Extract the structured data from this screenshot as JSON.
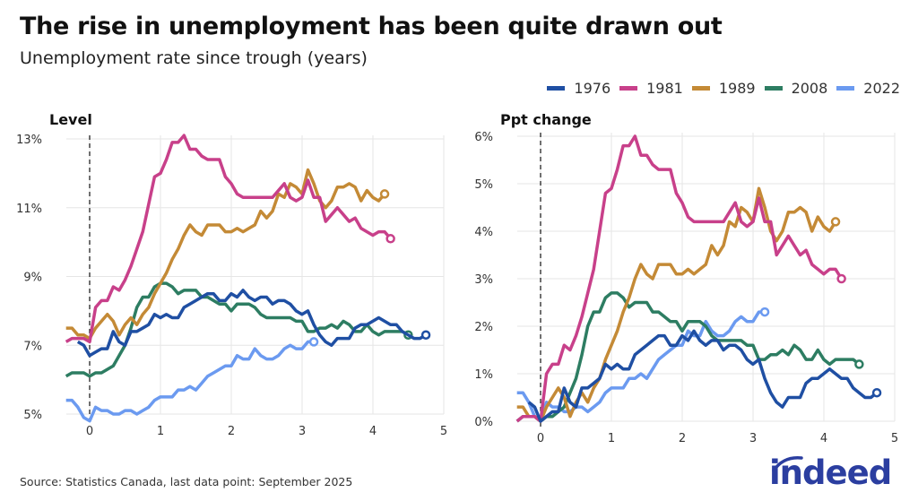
{
  "header": {
    "title": "The rise in unemployment has been quite drawn out",
    "subtitle": "Unemployment rate since trough (years)"
  },
  "footer": {
    "source": "Source: Statistics Canada, last data point: September 2025",
    "logo_text": "indeed"
  },
  "colors": {
    "1976": "#1f4fa3",
    "1981": "#c8408a",
    "1989": "#c48a36",
    "2008": "#2d7d62",
    "2022": "#6b9af0"
  },
  "legend": [
    "1976",
    "1981",
    "1989",
    "2008",
    "2022"
  ],
  "chart_data": [
    {
      "type": "line",
      "panel_title": "Level",
      "xlim": [
        -0.33,
        5
      ],
      "ylim": [
        5,
        13
      ],
      "x_ticks": [
        "0",
        "1",
        "2",
        "3",
        "4",
        "5"
      ],
      "y_ticks": [
        "5%",
        "7%",
        "9%",
        "11%",
        "13%"
      ],
      "grid": true,
      "reference_line_x": 0,
      "x_step": 0.0833,
      "series": [
        {
          "name": "2022",
          "x_start": -0.333,
          "values": [
            5.4,
            5.4,
            5.2,
            4.9,
            4.8,
            5.2,
            5.1,
            5.1,
            5.0,
            5.0,
            5.1,
            5.1,
            5.0,
            5.1,
            5.2,
            5.4,
            5.5,
            5.5,
            5.5,
            5.7,
            5.7,
            5.8,
            5.7,
            5.9,
            6.1,
            6.2,
            6.3,
            6.4,
            6.4,
            6.7,
            6.6,
            6.6,
            6.9,
            6.7,
            6.6,
            6.6,
            6.7,
            6.9,
            7.0,
            6.9,
            6.9,
            7.1,
            7.1
          ]
        },
        {
          "name": "2008",
          "x_start": -0.333,
          "values": [
            6.1,
            6.2,
            6.2,
            6.2,
            6.1,
            6.2,
            6.2,
            6.3,
            6.4,
            6.7,
            7.0,
            7.5,
            8.1,
            8.4,
            8.4,
            8.7,
            8.8,
            8.8,
            8.7,
            8.5,
            8.6,
            8.6,
            8.6,
            8.4,
            8.4,
            8.3,
            8.2,
            8.2,
            8.0,
            8.2,
            8.2,
            8.2,
            8.1,
            7.9,
            7.8,
            7.8,
            7.8,
            7.8,
            7.8,
            7.7,
            7.7,
            7.4,
            7.4,
            7.5,
            7.5,
            7.6,
            7.5,
            7.7,
            7.6,
            7.4,
            7.4,
            7.6,
            7.4,
            7.3,
            7.4,
            7.4,
            7.4,
            7.4,
            7.3
          ]
        },
        {
          "name": "1989",
          "x_start": -0.333,
          "values": [
            7.5,
            7.5,
            7.3,
            7.3,
            7.2,
            7.5,
            7.7,
            7.9,
            7.7,
            7.3,
            7.6,
            7.8,
            7.6,
            7.9,
            8.1,
            8.5,
            8.8,
            9.1,
            9.5,
            9.8,
            10.2,
            10.5,
            10.3,
            10.2,
            10.5,
            10.5,
            10.5,
            10.3,
            10.3,
            10.4,
            10.3,
            10.4,
            10.5,
            10.9,
            10.7,
            10.9,
            11.4,
            11.3,
            11.7,
            11.6,
            11.4,
            12.1,
            11.7,
            11.2,
            11.0,
            11.2,
            11.6,
            11.6,
            11.7,
            11.6,
            11.2,
            11.5,
            11.3,
            11.2,
            11.4
          ]
        },
        {
          "name": "1981",
          "x_start": -0.333,
          "values": [
            7.1,
            7.2,
            7.2,
            7.2,
            7.1,
            8.1,
            8.3,
            8.3,
            8.7,
            8.6,
            8.9,
            9.3,
            9.8,
            10.3,
            11.1,
            11.9,
            12.0,
            12.4,
            12.9,
            12.9,
            13.1,
            12.7,
            12.7,
            12.5,
            12.4,
            12.4,
            12.4,
            11.9,
            11.7,
            11.4,
            11.3,
            11.3,
            11.3,
            11.3,
            11.3,
            11.3,
            11.5,
            11.7,
            11.3,
            11.2,
            11.3,
            11.8,
            11.3,
            11.3,
            10.6,
            10.8,
            11.0,
            10.8,
            10.6,
            10.7,
            10.4,
            10.3,
            10.2,
            10.3,
            10.3,
            10.1
          ]
        },
        {
          "name": "1976",
          "x_start": -0.167,
          "values": [
            7.1,
            7.0,
            6.7,
            6.8,
            6.9,
            6.9,
            7.4,
            7.1,
            7.0,
            7.4,
            7.4,
            7.5,
            7.6,
            7.9,
            7.8,
            7.9,
            7.8,
            7.8,
            8.1,
            8.2,
            8.3,
            8.4,
            8.5,
            8.5,
            8.3,
            8.3,
            8.5,
            8.4,
            8.6,
            8.4,
            8.3,
            8.4,
            8.4,
            8.2,
            8.3,
            8.3,
            8.2,
            8.0,
            7.9,
            8.0,
            7.6,
            7.3,
            7.1,
            7.0,
            7.2,
            7.2,
            7.2,
            7.5,
            7.6,
            7.6,
            7.7,
            7.8,
            7.7,
            7.6,
            7.6,
            7.4,
            7.3,
            7.2,
            7.2,
            7.3
          ]
        }
      ]
    },
    {
      "type": "line",
      "panel_title": "Ppt change",
      "xlim": [
        -0.33,
        5
      ],
      "ylim": [
        0,
        6
      ],
      "x_ticks": [
        "0",
        "1",
        "2",
        "3",
        "4",
        "5"
      ],
      "y_ticks": [
        "0%",
        "1%",
        "2%",
        "3%",
        "4%",
        "5%",
        "6%"
      ],
      "grid": true,
      "reference_line_x": 0,
      "x_step": 0.0833,
      "series": [
        {
          "name": "2022",
          "x_start": -0.333,
          "values": [
            0.6,
            0.6,
            0.4,
            0.1,
            0,
            0.4,
            0.3,
            0.3,
            0.2,
            0.2,
            0.3,
            0.3,
            0.2,
            0.3,
            0.4,
            0.6,
            0.7,
            0.7,
            0.7,
            0.9,
            0.9,
            1.0,
            0.9,
            1.1,
            1.3,
            1.4,
            1.5,
            1.6,
            1.6,
            1.9,
            1.8,
            1.8,
            2.1,
            1.9,
            1.8,
            1.8,
            1.9,
            2.1,
            2.2,
            2.1,
            2.1,
            2.3,
            2.3
          ]
        },
        {
          "name": "2008",
          "x_start": -0.333,
          "values": [
            0,
            0.1,
            0.1,
            0.1,
            0,
            0.1,
            0.1,
            0.2,
            0.3,
            0.6,
            0.9,
            1.4,
            2.0,
            2.3,
            2.3,
            2.6,
            2.7,
            2.7,
            2.6,
            2.4,
            2.5,
            2.5,
            2.5,
            2.3,
            2.3,
            2.2,
            2.1,
            2.1,
            1.9,
            2.1,
            2.1,
            2.1,
            2.0,
            1.8,
            1.7,
            1.7,
            1.7,
            1.7,
            1.7,
            1.6,
            1.6,
            1.3,
            1.3,
            1.4,
            1.4,
            1.5,
            1.4,
            1.6,
            1.5,
            1.3,
            1.3,
            1.5,
            1.3,
            1.2,
            1.3,
            1.3,
            1.3,
            1.3,
            1.2
          ]
        },
        {
          "name": "1989",
          "x_start": -0.333,
          "values": [
            0.3,
            0.3,
            0.1,
            0.1,
            0,
            0.3,
            0.5,
            0.7,
            0.5,
            0.1,
            0.4,
            0.6,
            0.4,
            0.7,
            0.9,
            1.3,
            1.6,
            1.9,
            2.3,
            2.6,
            3.0,
            3.3,
            3.1,
            3.0,
            3.3,
            3.3,
            3.3,
            3.1,
            3.1,
            3.2,
            3.1,
            3.2,
            3.3,
            3.7,
            3.5,
            3.7,
            4.2,
            4.1,
            4.5,
            4.4,
            4.2,
            4.9,
            4.5,
            4.0,
            3.8,
            4.0,
            4.4,
            4.4,
            4.5,
            4.4,
            4.0,
            4.3,
            4.1,
            4.0,
            4.2
          ]
        },
        {
          "name": "1981",
          "x_start": -0.333,
          "values": [
            0,
            0.1,
            0.1,
            0.1,
            0,
            1.0,
            1.2,
            1.2,
            1.6,
            1.5,
            1.8,
            2.2,
            2.7,
            3.2,
            4.0,
            4.8,
            4.9,
            5.3,
            5.8,
            5.8,
            6.0,
            5.6,
            5.6,
            5.4,
            5.3,
            5.3,
            5.3,
            4.8,
            4.6,
            4.3,
            4.2,
            4.2,
            4.2,
            4.2,
            4.2,
            4.2,
            4.4,
            4.6,
            4.2,
            4.1,
            4.2,
            4.7,
            4.2,
            4.2,
            3.5,
            3.7,
            3.9,
            3.7,
            3.5,
            3.6,
            3.3,
            3.2,
            3.1,
            3.2,
            3.2,
            3.0
          ]
        },
        {
          "name": "1976",
          "x_start": -0.167,
          "values": [
            0.4,
            0.3,
            0,
            0.1,
            0.2,
            0.2,
            0.7,
            0.4,
            0.3,
            0.7,
            0.7,
            0.8,
            0.9,
            1.2,
            1.1,
            1.2,
            1.1,
            1.1,
            1.4,
            1.5,
            1.6,
            1.7,
            1.8,
            1.8,
            1.6,
            1.6,
            1.8,
            1.7,
            1.9,
            1.7,
            1.6,
            1.7,
            1.7,
            1.5,
            1.6,
            1.6,
            1.5,
            1.3,
            1.2,
            1.3,
            0.9,
            0.6,
            0.4,
            0.3,
            0.5,
            0.5,
            0.5,
            0.8,
            0.9,
            0.9,
            1.0,
            1.1,
            1.0,
            0.9,
            0.9,
            0.7,
            0.6,
            0.5,
            0.5,
            0.6
          ]
        }
      ]
    }
  ]
}
